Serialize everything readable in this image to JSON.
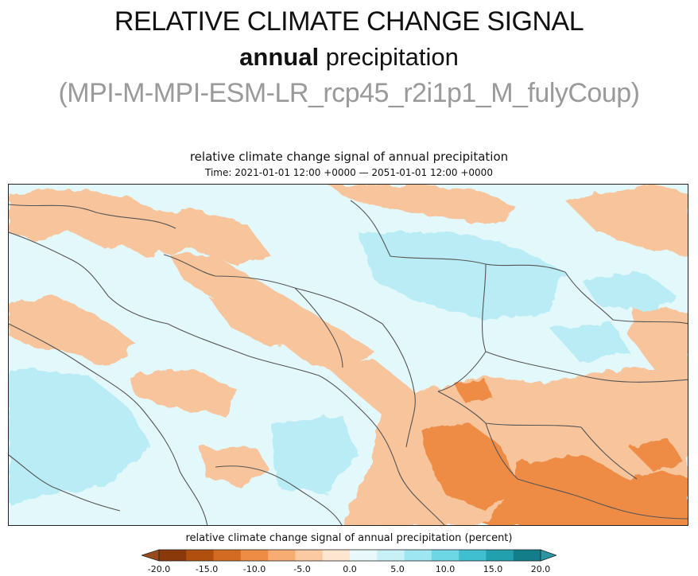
{
  "slide": {
    "title": "RELATIVE CLIMATE CHANGE SIGNAL",
    "subtitle_bold": "annual",
    "subtitle_rest": " precipitation",
    "model": "(MPI-M-MPI-ESM-LR_rcp45_r2i1p1_M_fulyCoup)"
  },
  "plot": {
    "title": "relative climate change signal of annual precipitation",
    "time": "Time: 2021-01-01 12:00 +0000 — 2051-01-01 12:00 +0000"
  },
  "colorbar": {
    "label": "relative climate change signal of annual precipitation (percent)",
    "ticks": [
      "-20.0",
      "-15.0",
      "-10.0",
      "-5.0",
      "0.0",
      "5.0",
      "10.0",
      "15.0",
      "20.0"
    ],
    "colors": [
      "#8a3a0a",
      "#b1500e",
      "#d46b22",
      "#ee8c45",
      "#f7ac74",
      "#fbcaa2",
      "#fde5cf",
      "#e9f9fb",
      "#c7f1f7",
      "#9ee6f1",
      "#6dd7e6",
      "#3fbfcf",
      "#23a0ae",
      "#137d89"
    ],
    "under_color": "#9a4a1a",
    "over_color": "#2a96a4"
  },
  "map": {
    "background_color": "#e3f8fb",
    "dry_color": "#f7c49b",
    "strong_dry_color": "#ee8c45",
    "wet_color": "#b9ecf4",
    "border_color": "#555555"
  }
}
